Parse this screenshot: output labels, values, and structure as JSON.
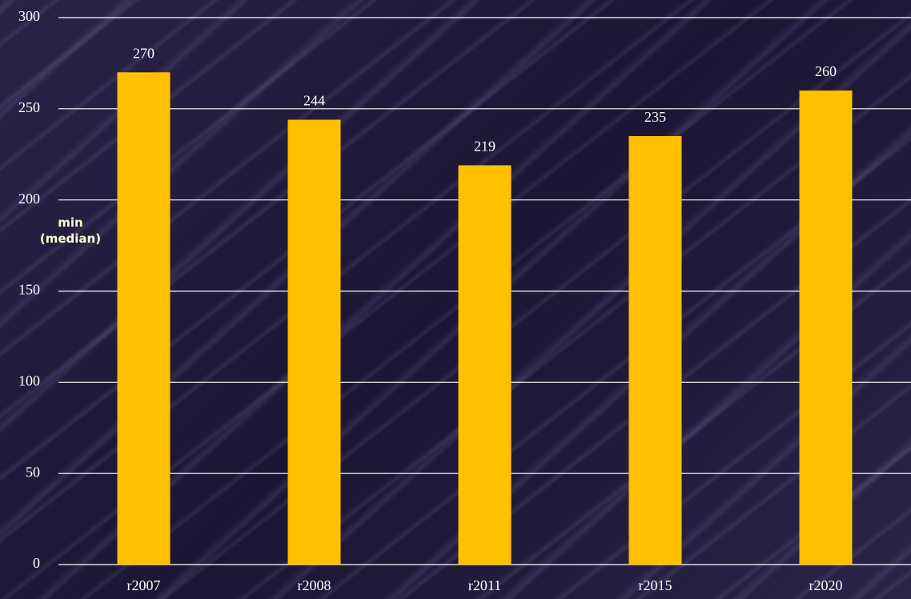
{
  "chart_data": {
    "type": "bar",
    "ylabel": "min (median)",
    "categories": [
      "r2007",
      "r2008",
      "r2011",
      "r2015",
      "r2020"
    ],
    "values": [
      270,
      244,
      219,
      235,
      260
    ],
    "color": "#ffc000",
    "ylim": [
      0,
      300
    ],
    "yticks": [
      0,
      50,
      100,
      150,
      200,
      250,
      300
    ],
    "grid": true
  }
}
